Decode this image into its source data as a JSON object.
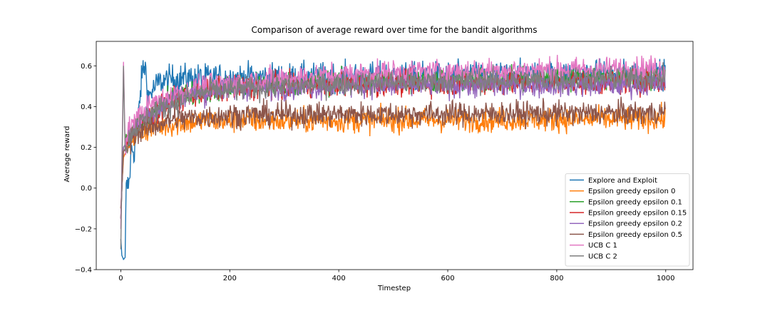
{
  "chart_data": {
    "type": "line",
    "title": "Comparison of average reward over time for the bandit algorithms",
    "xlabel": "Timestep",
    "ylabel": "Average reward",
    "xlim": [
      -45,
      1050
    ],
    "ylim": [
      -0.4,
      0.72
    ],
    "xticks": [
      0,
      200,
      400,
      600,
      800,
      1000
    ],
    "xtick_labels": [
      "0",
      "200",
      "400",
      "600",
      "800",
      "1000"
    ],
    "yticks": [
      -0.4,
      -0.2,
      0.0,
      0.2,
      0.4,
      0.6
    ],
    "ytick_labels": [
      "−0.4",
      "−0.2",
      "0.0",
      "0.2",
      "0.4",
      "0.6"
    ],
    "grid": false,
    "legend_position": "lower-right",
    "n_points": 1000,
    "series": [
      {
        "name": "Explore and Exploit",
        "color": "#1f77b4",
        "shape": [
          [
            0,
            -0.25
          ],
          [
            2,
            -0.33
          ],
          [
            5,
            -0.35
          ],
          [
            8,
            -0.34
          ],
          [
            10,
            0.0
          ],
          [
            15,
            0.02
          ],
          [
            20,
            0.2
          ],
          [
            25,
            0.18
          ],
          [
            30,
            0.3
          ],
          [
            40,
            0.58
          ],
          [
            45,
            0.6
          ],
          [
            50,
            0.45
          ],
          [
            70,
            0.52
          ],
          [
            100,
            0.54
          ],
          [
            1000,
            0.56
          ]
        ],
        "noise": 0.035
      },
      {
        "name": "Epsilon greedy epsilon 0",
        "color": "#ff7f0e",
        "shape": [
          [
            0,
            -0.1
          ],
          [
            5,
            0.15
          ],
          [
            20,
            0.25
          ],
          [
            60,
            0.3
          ],
          [
            150,
            0.33
          ],
          [
            300,
            0.33
          ],
          [
            1000,
            0.34
          ]
        ],
        "noise": 0.03
      },
      {
        "name": "Epsilon greedy epsilon 0.1",
        "color": "#2ca02c",
        "shape": [
          [
            0,
            -0.15
          ],
          [
            5,
            0.2
          ],
          [
            30,
            0.3
          ],
          [
            100,
            0.45
          ],
          [
            200,
            0.5
          ],
          [
            400,
            0.52
          ],
          [
            1000,
            0.54
          ]
        ],
        "noise": 0.03
      },
      {
        "name": "Epsilon greedy epsilon 0.15",
        "color": "#d62728",
        "shape": [
          [
            0,
            -0.15
          ],
          [
            5,
            0.2
          ],
          [
            30,
            0.3
          ],
          [
            100,
            0.44
          ],
          [
            200,
            0.49
          ],
          [
            400,
            0.51
          ],
          [
            1000,
            0.52
          ]
        ],
        "noise": 0.03
      },
      {
        "name": "Epsilon greedy epsilon 0.2",
        "color": "#9467bd",
        "shape": [
          [
            0,
            -0.15
          ],
          [
            5,
            0.2
          ],
          [
            30,
            0.32
          ],
          [
            100,
            0.45
          ],
          [
            200,
            0.49
          ],
          [
            400,
            0.5
          ],
          [
            1000,
            0.51
          ]
        ],
        "noise": 0.03
      },
      {
        "name": "Epsilon greedy epsilon 0.5",
        "color": "#8c564b",
        "shape": [
          [
            0,
            -0.1
          ],
          [
            5,
            0.18
          ],
          [
            30,
            0.28
          ],
          [
            100,
            0.34
          ],
          [
            200,
            0.36
          ],
          [
            1000,
            0.37
          ]
        ],
        "noise": 0.03
      },
      {
        "name": "UCB C 1",
        "color": "#e377c2",
        "shape": [
          [
            0,
            -0.2
          ],
          [
            5,
            0.62
          ],
          [
            8,
            0.22
          ],
          [
            20,
            0.32
          ],
          [
            60,
            0.42
          ],
          [
            150,
            0.5
          ],
          [
            300,
            0.54
          ],
          [
            500,
            0.57
          ],
          [
            1000,
            0.59
          ]
        ],
        "noise": 0.03
      },
      {
        "name": "UCB C 2",
        "color": "#7f7f7f",
        "shape": [
          [
            0,
            -0.3
          ],
          [
            5,
            0.6
          ],
          [
            8,
            0.18
          ],
          [
            20,
            0.28
          ],
          [
            60,
            0.38
          ],
          [
            150,
            0.47
          ],
          [
            300,
            0.5
          ],
          [
            500,
            0.52
          ],
          [
            1000,
            0.54
          ]
        ],
        "noise": 0.03
      }
    ]
  }
}
